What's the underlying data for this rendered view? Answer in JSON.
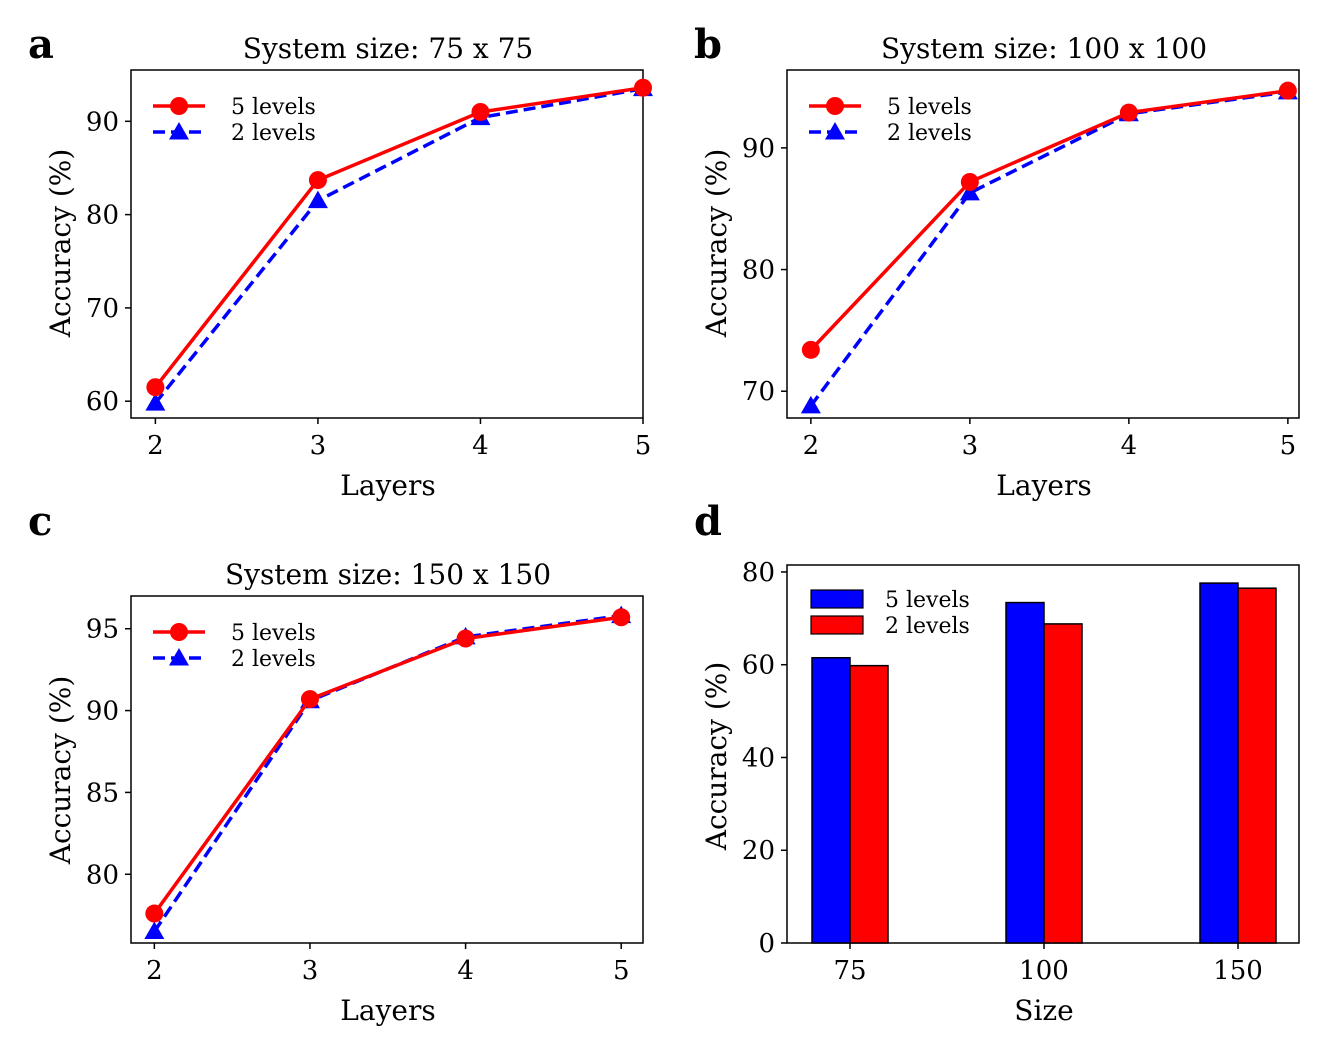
{
  "colors": {
    "red": "#ff0000",
    "blue": "#0000ff",
    "frame": "#000000"
  },
  "chart_data": [
    {
      "panel": "a",
      "type": "line",
      "title": "System size: 75 x 75",
      "xlabel": "Layers",
      "ylabel": "Accuracy (%)",
      "x": [
        2,
        3,
        4,
        5
      ],
      "xlim": [
        1.85,
        5.0
      ],
      "ylim": [
        58.2,
        95.5
      ],
      "xticks": [
        2,
        3,
        4,
        5
      ],
      "yticks": [
        60,
        70,
        80,
        90
      ],
      "legend": "top-left",
      "grid": false,
      "series": [
        {
          "name": "5 levels",
          "color": "#ff0000",
          "marker": "circle",
          "dash": "solid",
          "values": [
            61.5,
            83.7,
            91.0,
            93.6
          ]
        },
        {
          "name": "2 levels",
          "color": "#0000ff",
          "marker": "triangle",
          "dash": "dashed",
          "values": [
            59.8,
            81.5,
            90.4,
            93.5
          ]
        }
      ]
    },
    {
      "panel": "b",
      "type": "line",
      "title": "System size: 100 x 100",
      "xlabel": "Layers",
      "ylabel": "Accuracy (%)",
      "x": [
        2,
        3,
        4,
        5
      ],
      "xlim": [
        1.85,
        5.07
      ],
      "ylim": [
        67.8,
        96.4
      ],
      "xticks": [
        2,
        3,
        4,
        5
      ],
      "yticks": [
        70,
        80,
        90
      ],
      "legend": "top-left",
      "grid": false,
      "series": [
        {
          "name": "5 levels",
          "color": "#ff0000",
          "marker": "circle",
          "dash": "solid",
          "values": [
            73.4,
            87.2,
            92.9,
            94.7
          ]
        },
        {
          "name": "2 levels",
          "color": "#0000ff",
          "marker": "triangle",
          "dash": "dashed",
          "values": [
            68.8,
            86.3,
            92.8,
            94.6
          ]
        }
      ]
    },
    {
      "panel": "c",
      "type": "line",
      "title": "System size: 150 x 150",
      "xlabel": "Layers",
      "ylabel": "Accuracy (%)",
      "x": [
        2,
        3,
        4,
        5
      ],
      "xlim": [
        1.85,
        5.14
      ],
      "ylim": [
        75.8,
        97.0
      ],
      "xticks": [
        2,
        3,
        4,
        5
      ],
      "yticks": [
        80,
        85,
        90,
        95
      ],
      "legend": "top-left",
      "grid": false,
      "series": [
        {
          "name": "5 levels",
          "color": "#ff0000",
          "marker": "circle",
          "dash": "solid",
          "values": [
            77.6,
            90.7,
            94.4,
            95.7
          ]
        },
        {
          "name": "2 levels",
          "color": "#0000ff",
          "marker": "triangle",
          "dash": "dashed",
          "values": [
            76.5,
            90.6,
            94.5,
            95.8
          ]
        }
      ]
    },
    {
      "panel": "d",
      "type": "bar",
      "title": "",
      "xlabel": "Size",
      "ylabel": "Accuracy (%)",
      "categories": [
        "75",
        "100",
        "150"
      ],
      "ylim": [
        0,
        81.5
      ],
      "yticks": [
        0,
        20,
        40,
        60,
        80
      ],
      "legend": "top-left",
      "grid": false,
      "series": [
        {
          "name": "5 levels",
          "color": "#0000ff",
          "values": [
            61.5,
            73.4,
            77.6
          ]
        },
        {
          "name": "2 levels",
          "color": "#ff0000",
          "values": [
            59.8,
            68.8,
            76.5
          ]
        }
      ]
    }
  ]
}
